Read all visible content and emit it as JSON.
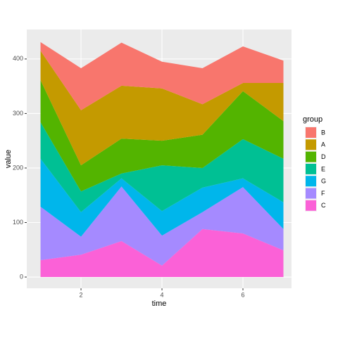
{
  "chart_data": {
    "type": "stacked_area",
    "x_label": "time",
    "y_label": "value",
    "legend_title": "group",
    "x": [
      1,
      2,
      3,
      4,
      5,
      6,
      7
    ],
    "series": [
      {
        "name": "C",
        "color": "#FB61D7",
        "values": [
          31,
          41,
          66,
          21,
          88,
          80,
          49
        ]
      },
      {
        "name": "F",
        "color": "#A58AFF",
        "values": [
          98,
          33,
          100,
          55,
          31,
          85,
          39
        ]
      },
      {
        "name": "G",
        "color": "#00B6EB",
        "values": [
          88,
          45,
          15,
          45,
          45,
          16,
          49
        ]
      },
      {
        "name": "E",
        "color": "#00C094",
        "values": [
          67,
          38,
          9,
          84,
          36,
          72,
          80
        ]
      },
      {
        "name": "D",
        "color": "#53B400",
        "values": [
          77,
          48,
          64,
          45,
          61,
          88,
          69
        ]
      },
      {
        "name": "A",
        "color": "#C49A00",
        "values": [
          54,
          101,
          97,
          96,
          56,
          15,
          70
        ]
      },
      {
        "name": "B",
        "color": "#F8766D",
        "values": [
          16,
          77,
          79,
          49,
          66,
          67,
          41
        ]
      }
    ],
    "xlim": [
      0.66,
      7.2
    ],
    "ylim": [
      -20.6,
      454
    ],
    "xticks": [
      2,
      4,
      6
    ],
    "yticks": [
      0,
      100,
      200,
      300,
      400
    ],
    "grid": true,
    "legend_position": "right"
  }
}
